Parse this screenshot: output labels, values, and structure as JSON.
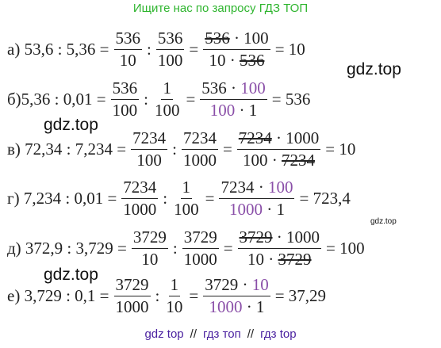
{
  "header": {
    "text": "Ищите нас по запросу ГДЗ ТОП",
    "color": "#2fb52f"
  },
  "watermarks": [
    "gdz.top",
    "gdz.top",
    "gdz.top",
    "gdz.top"
  ],
  "rows": [
    {
      "segments": [
        {
          "text": "а) 53,6 : 5,36 ="
        },
        {
          "num": [
            {
              "text": "536"
            }
          ],
          "den": [
            {
              "text": "10"
            }
          ]
        },
        {
          "text": ":"
        },
        {
          "num": [
            {
              "text": "536"
            }
          ],
          "den": [
            {
              "text": "100"
            }
          ]
        },
        {
          "text": "="
        },
        {
          "num": [
            {
              "text": "536",
              "mark": "strike"
            },
            {
              "text": " · 100"
            }
          ],
          "den": [
            {
              "text": "10 · "
            },
            {
              "text": "536",
              "mark": "strike"
            }
          ]
        },
        {
          "text": "= 10"
        }
      ]
    },
    {
      "segments": [
        {
          "text": "б)5,36 : 0,01 ="
        },
        {
          "num": [
            {
              "text": "536"
            }
          ],
          "den": [
            {
              "text": "100"
            }
          ]
        },
        {
          "text": ":"
        },
        {
          "num": [
            {
              "text": "1"
            }
          ],
          "den": [
            {
              "text": "100"
            }
          ]
        },
        {
          "text": "="
        },
        {
          "num": [
            {
              "text": "536 · "
            },
            {
              "text": "100",
              "mark": "purple"
            }
          ],
          "den": [
            {
              "text": "100",
              "mark": "purple"
            },
            {
              "text": " · 1"
            }
          ]
        },
        {
          "text": "= 536"
        }
      ]
    },
    {
      "segments": [
        {
          "text": "в) 72,34 : 7,234 ="
        },
        {
          "num": [
            {
              "text": "7234"
            }
          ],
          "den": [
            {
              "text": "100"
            }
          ]
        },
        {
          "text": ":"
        },
        {
          "num": [
            {
              "text": "7234"
            }
          ],
          "den": [
            {
              "text": "1000"
            }
          ]
        },
        {
          "text": "="
        },
        {
          "num": [
            {
              "text": "7234",
              "mark": "strike"
            },
            {
              "text": " · 1000"
            }
          ],
          "den": [
            {
              "text": "100 · "
            },
            {
              "text": "7234",
              "mark": "strike"
            }
          ]
        },
        {
          "text": "= 10"
        }
      ]
    },
    {
      "segments": [
        {
          "text": "г) 7,234 : 0,01 ="
        },
        {
          "num": [
            {
              "text": "7234"
            }
          ],
          "den": [
            {
              "text": "1000"
            }
          ]
        },
        {
          "text": ":"
        },
        {
          "num": [
            {
              "text": "1"
            }
          ],
          "den": [
            {
              "text": "100"
            }
          ]
        },
        {
          "text": "="
        },
        {
          "num": [
            {
              "text": "7234 · "
            },
            {
              "text": "100",
              "mark": "purple"
            }
          ],
          "den": [
            {
              "text": "1000",
              "mark": "purple"
            },
            {
              "text": " · 1"
            }
          ]
        },
        {
          "text": "= 723,4"
        }
      ]
    },
    {
      "segments": [
        {
          "text": "д) 372,9 : 3,729 ="
        },
        {
          "num": [
            {
              "text": "3729"
            }
          ],
          "den": [
            {
              "text": "10"
            }
          ]
        },
        {
          "text": ":"
        },
        {
          "num": [
            {
              "text": "3729"
            }
          ],
          "den": [
            {
              "text": "1000"
            }
          ]
        },
        {
          "text": "="
        },
        {
          "num": [
            {
              "text": "3729",
              "mark": "strike"
            },
            {
              "text": " · 1000"
            }
          ],
          "den": [
            {
              "text": "10 · "
            },
            {
              "text": "3729",
              "mark": "strike"
            }
          ]
        },
        {
          "text": "= 100"
        }
      ]
    },
    {
      "segments": [
        {
          "text": "е) 3,729 : 0,1 ="
        },
        {
          "num": [
            {
              "text": "3729"
            }
          ],
          "den": [
            {
              "text": "1000"
            }
          ]
        },
        {
          "text": ":"
        },
        {
          "num": [
            {
              "text": "1"
            }
          ],
          "den": [
            {
              "text": "10"
            }
          ]
        },
        {
          "text": "="
        },
        {
          "num": [
            {
              "text": "3729 · "
            },
            {
              "text": "10",
              "mark": "purple"
            }
          ],
          "den": [
            {
              "text": "1000",
              "mark": "purple"
            },
            {
              "text": " · 1"
            }
          ]
        },
        {
          "text": "= 37,29"
        }
      ]
    }
  ],
  "footer": [
    {
      "text": "gdz top",
      "color": "#4b22a0"
    },
    {
      "text": "//",
      "color": "#222222"
    },
    {
      "text": "гдз топ",
      "color": "#4b22a0"
    },
    {
      "text": "//",
      "color": "#222222"
    },
    {
      "text": "гдз top",
      "color": "#4b22a0"
    }
  ]
}
